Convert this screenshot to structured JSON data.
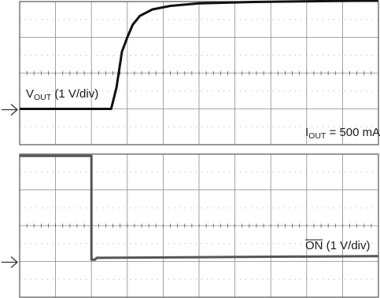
{
  "chart_data": [
    {
      "type": "line",
      "title": "",
      "xlabel": "",
      "ylabel": "",
      "grid": true,
      "divisions": {
        "x": 10,
        "y": 4
      },
      "series": [
        {
          "name": "VOUT",
          "label_main": "V",
          "label_sub": "OUT",
          "label_tail": " (1 V/div)",
          "color": "#111111",
          "points": [
            [
              0,
              0
            ],
            [
              2.55,
              0
            ],
            [
              2.7,
              0.6
            ],
            [
              2.85,
              1.6
            ],
            [
              3.0,
              2.0
            ],
            [
              3.15,
              2.35
            ],
            [
              3.35,
              2.6
            ],
            [
              3.7,
              2.78
            ],
            [
              4.2,
              2.88
            ],
            [
              5.0,
              2.95
            ],
            [
              6.5,
              2.99
            ],
            [
              10,
              3.03
            ]
          ]
        }
      ],
      "annotation": {
        "main": "I",
        "sub": "OUT",
        "tail": " = 500 mA"
      },
      "ground_marker": "ground-arrow"
    },
    {
      "type": "line",
      "title": "",
      "xlabel": "",
      "ylabel": "",
      "grid": true,
      "divisions": {
        "x": 10,
        "y": 4
      },
      "series": [
        {
          "name": "ON",
          "label_main": "ON",
          "label_tail": " (1 V/div)",
          "overline": true,
          "color": "#555555",
          "points": [
            [
              0,
              2.95
            ],
            [
              2.0,
              2.95
            ],
            [
              2.0,
              0.05
            ],
            [
              2.1,
              0.05
            ],
            [
              2.15,
              0.1
            ],
            [
              10,
              0.15
            ]
          ]
        }
      ],
      "ground_marker": "ground-arrow"
    }
  ]
}
